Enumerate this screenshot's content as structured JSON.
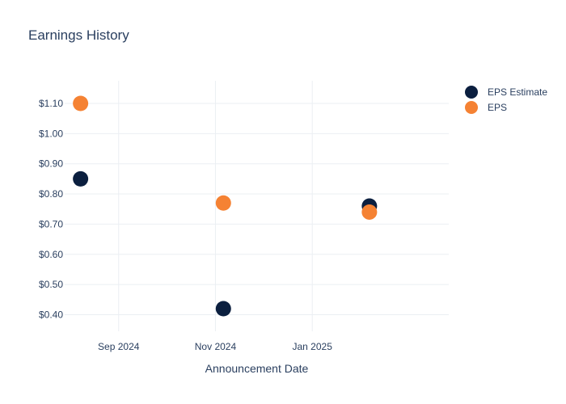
{
  "chart_data": {
    "type": "scatter",
    "title": "Earnings History",
    "xlabel": "Announcement Date",
    "ylabel": "",
    "x_ticks": [
      {
        "label": "Sep 2024",
        "date": "2024-09-01"
      },
      {
        "label": "Nov 2024",
        "date": "2024-11-01"
      },
      {
        "label": "Jan 2025",
        "date": "2025-01-01"
      }
    ],
    "y_ticks": [
      {
        "label": "$0.40",
        "value": 0.4
      },
      {
        "label": "$0.50",
        "value": 0.5
      },
      {
        "label": "$0.60",
        "value": 0.6
      },
      {
        "label": "$0.70",
        "value": 0.7
      },
      {
        "label": "$0.80",
        "value": 0.8
      },
      {
        "label": "$0.90",
        "value": 0.9
      },
      {
        "label": "$1.00",
        "value": 1.0
      },
      {
        "label": "$1.10",
        "value": 1.1
      }
    ],
    "xlim": [
      "2024-07-29",
      "2025-03-28"
    ],
    "ylim": [
      0.345,
      1.175
    ],
    "grid": true,
    "legend_position": "top-right",
    "series": [
      {
        "name": "EPS Estimate",
        "color": "#0b1f3f",
        "points": [
          {
            "x": "2024-08-08",
            "y": 0.85
          },
          {
            "x": "2024-11-06",
            "y": 0.42
          },
          {
            "x": "2025-02-06",
            "y": 0.76
          }
        ]
      },
      {
        "name": "EPS",
        "color": "#f58233",
        "points": [
          {
            "x": "2024-08-08",
            "y": 1.1
          },
          {
            "x": "2024-11-06",
            "y": 0.77
          },
          {
            "x": "2025-02-06",
            "y": 0.74
          }
        ]
      }
    ]
  }
}
